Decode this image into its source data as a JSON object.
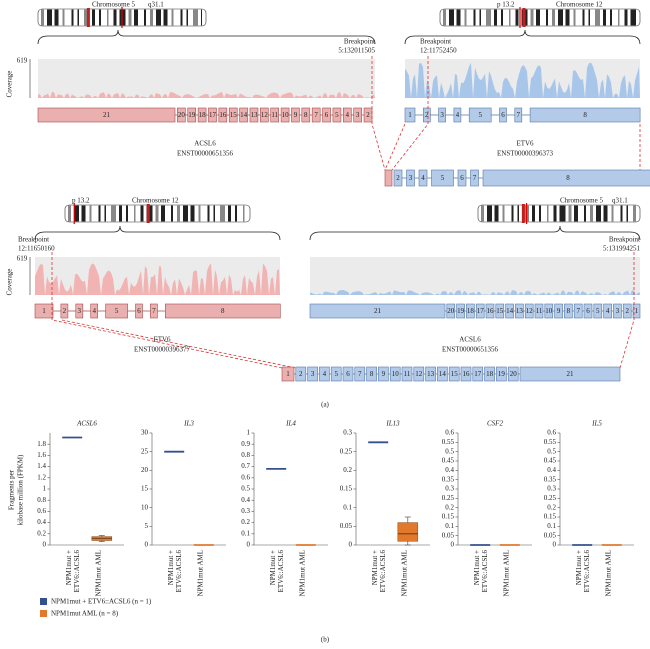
{
  "panel_a": {
    "label": "(a)",
    "coverage_label": "Coverage",
    "top": {
      "left_chrom": {
        "name": "Chromosome 5",
        "band": "q31.1"
      },
      "right_chrom": {
        "band": "p 13.2",
        "name": "Chromosome 12"
      },
      "coverage_max": 619,
      "left_breakpoint": {
        "label": "Breakpoint",
        "pos": "5:132011505"
      },
      "right_breakpoint": {
        "label": "Breakpoint",
        "pos": "12:11752450"
      },
      "left_gene": {
        "name": "ACSL6",
        "transcript": "ENST00000651356"
      },
      "right_gene": {
        "name": "ETV6",
        "transcript": "ENST00000396373"
      },
      "left_exons": [
        "21",
        "20",
        "19",
        "18",
        "17",
        "16",
        "15",
        "14",
        "13",
        "12",
        "11",
        "10",
        "9",
        "8",
        "7",
        "6",
        "5",
        "4",
        "3",
        "2"
      ],
      "right_exons": [
        "1",
        "2",
        "3",
        "4",
        "5",
        "6",
        "7",
        "8"
      ],
      "fusion_exons": [
        "2",
        "3",
        "4",
        "5",
        "6",
        "7",
        "8"
      ]
    },
    "bottom": {
      "left_chrom": {
        "band": "p 13.2",
        "name": "Chromosome 12"
      },
      "right_chrom": {
        "name": "Chromosome 5",
        "band": "q31.1"
      },
      "coverage_max": 619,
      "left_breakpoint": {
        "label": "Breakpoint",
        "pos": "12:11650160"
      },
      "right_breakpoint": {
        "label": "Breakpoint",
        "pos": "5:131994251"
      },
      "left_gene": {
        "name": "ETV6",
        "transcript": "ENST00000396377"
      },
      "right_gene": {
        "name": "ACSL6",
        "transcript": "ENST00000651356"
      },
      "left_exons": [
        "1",
        "2",
        "3",
        "4",
        "5",
        "6",
        "7",
        "8"
      ],
      "right_exons": [
        "21",
        "20",
        "19",
        "18",
        "17",
        "16",
        "15",
        "14",
        "13",
        "12",
        "11",
        "10",
        "9",
        "8",
        "7",
        "6",
        "5",
        "4",
        "3",
        "2",
        "1"
      ],
      "fusion_exons": [
        "1",
        "2",
        "3",
        "4",
        "5",
        "6",
        "7",
        "8",
        "9",
        "10",
        "11",
        "12",
        "13",
        "14",
        "15",
        "16",
        "17",
        "18",
        "19",
        "20",
        "21"
      ]
    }
  },
  "panel_b": {
    "label": "(b)",
    "legend": [
      {
        "name": "NPM1mut + ETV6::ACSL6 (n = 1)",
        "color": "#34508f"
      },
      {
        "name": "NPM1mut AML (n = 8)",
        "color": "#e2782c"
      }
    ]
  },
  "chart_data": [
    {
      "type": "box",
      "title": "ACSL6",
      "ylabel": [
        "Fragments per",
        "kilobase million (FPKM)"
      ],
      "categories": [
        [
          "NPM1mut +",
          "ETV6::ACSL6"
        ],
        [
          "NPM1mut AML"
        ]
      ],
      "ylim": [
        0,
        2
      ],
      "yticks": [
        0,
        0.2,
        0.4,
        0.6,
        0.8,
        1,
        1.2,
        1.4,
        1.6,
        1.8
      ],
      "boxes": [
        {
          "median": 1.92
        },
        {
          "min": 0.06,
          "q1": 0.08,
          "median": 0.12,
          "q3": 0.15,
          "max": 0.17
        }
      ]
    },
    {
      "type": "box",
      "title": "IL3",
      "categories": [
        [
          "NPM1mut +",
          "ETV6::ACSL6"
        ],
        [
          "NPM1mut AML"
        ]
      ],
      "ylim": [
        0,
        30
      ],
      "yticks": [
        0,
        5,
        10,
        15,
        20,
        25,
        30
      ],
      "boxes": [
        {
          "median": 25
        },
        {
          "median": 0
        }
      ]
    },
    {
      "type": "box",
      "title": "IL4",
      "categories": [
        [
          "NPM1mut +",
          "ETV6::ACSL6"
        ],
        [
          "NPM1mut AML"
        ]
      ],
      "ylim": [
        0,
        1
      ],
      "yticks": [
        0,
        0.1,
        0.2,
        0.3,
        0.4,
        0.5,
        0.6,
        0.7,
        0.8,
        0.9,
        1
      ],
      "boxes": [
        {
          "median": 0.68
        },
        {
          "median": 0
        }
      ]
    },
    {
      "type": "box",
      "title": "IL13",
      "categories": [
        [
          "NPM1mut +",
          "ETV6::ACSL6"
        ],
        [
          "NPM1mut AML"
        ]
      ],
      "ylim": [
        0,
        0.3
      ],
      "yticks": [
        0,
        0.05,
        0.1,
        0.15,
        0.2,
        0.25,
        0.3
      ],
      "boxes": [
        {
          "median": 0.275
        },
        {
          "min": 0,
          "q1": 0.01,
          "median": 0.03,
          "q3": 0.06,
          "max": 0.075
        }
      ]
    },
    {
      "type": "box",
      "title": "CSF2",
      "categories": [
        [
          "NPM1mut +",
          "ETV6::ACSL6"
        ],
        [
          "NPM1mut AML"
        ]
      ],
      "ylim": [
        0,
        0.6
      ],
      "yticks": [
        0,
        0.05,
        0.1,
        0.15,
        0.2,
        0.25,
        0.3,
        0.35,
        0.4,
        0.45,
        0.5,
        0.55,
        0.6
      ],
      "boxes": [
        {
          "median": 0
        },
        {
          "median": 0
        }
      ]
    },
    {
      "type": "box",
      "title": "IL5",
      "categories": [
        [
          "NPM1mut +",
          "ETV6::ACSL6"
        ],
        [
          "NPM1mut AML"
        ]
      ],
      "ylim": [
        0,
        0.6
      ],
      "yticks": [
        0,
        0.05,
        0.1,
        0.15,
        0.2,
        0.25,
        0.3,
        0.35,
        0.4,
        0.45,
        0.5,
        0.55,
        0.6
      ],
      "boxes": [
        {
          "median": 0
        },
        {
          "median": 0
        }
      ]
    }
  ]
}
